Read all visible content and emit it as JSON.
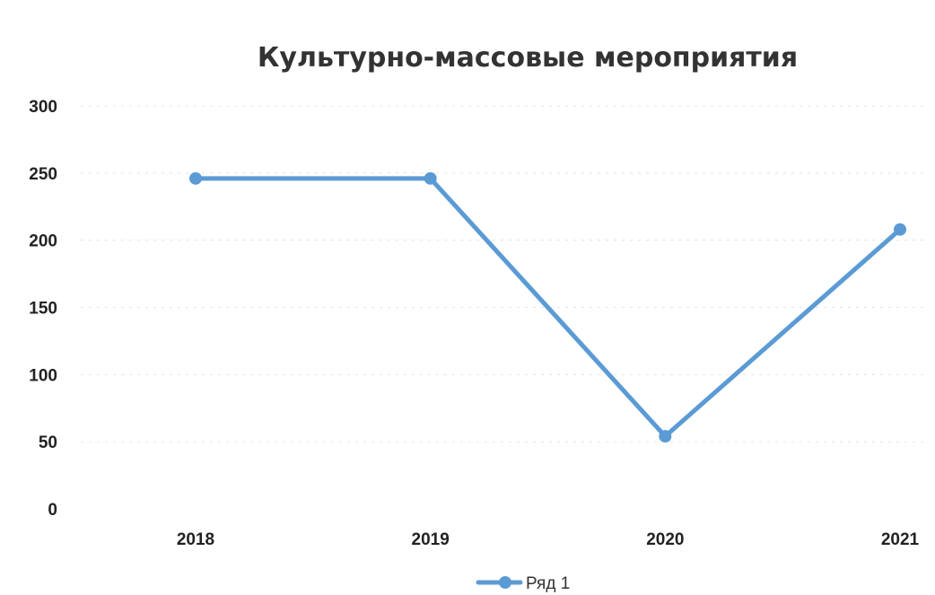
{
  "chart_data": {
    "type": "line",
    "title": "Культурно-массовые мероприятия",
    "categories": [
      "2018",
      "2019",
      "2020",
      "2021"
    ],
    "series": [
      {
        "name": "Ряд 1",
        "values": [
          246,
          246,
          54,
          208
        ],
        "color": "#5b9bd5"
      }
    ],
    "ylim": [
      0,
      300
    ],
    "yticks": [
      0,
      50,
      100,
      150,
      200,
      250,
      300
    ],
    "grid": true,
    "legend": "bottom"
  }
}
